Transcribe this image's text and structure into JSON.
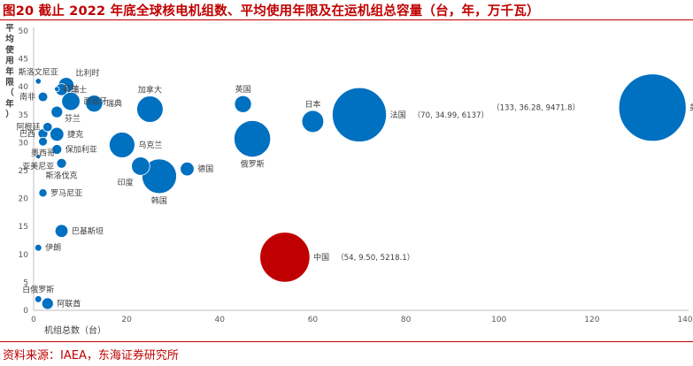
{
  "header": {
    "title": "图20  截止 2022 年底全球核电机组数、平均使用年限及在运机组总容量（台，年，万千瓦）"
  },
  "footer": {
    "source": "资料来源：IAEA，东海证券研究所"
  },
  "colors": {
    "bubble": "#0070c0",
    "highlight": "#c00000",
    "axis": "#bfbfbf",
    "text": "#404040",
    "title": "#c00000"
  },
  "chart_data": {
    "type": "bubble",
    "title": "",
    "xlabel": "机组总数（台）",
    "ylabel": "平均使用年限（年）",
    "xlim": [
      0,
      140
    ],
    "ylim": [
      0,
      50
    ],
    "x_ticks": [
      0,
      20,
      40,
      60,
      80,
      100,
      120,
      140
    ],
    "y_ticks": [
      0,
      5,
      10,
      15,
      20,
      25,
      30,
      35,
      40,
      45,
      50
    ],
    "grid": false,
    "points": [
      {
        "name": "美国",
        "x": 133,
        "y": 36.28,
        "size": 9471.8,
        "annotation": "（133, 36.28, 9471.8）"
      },
      {
        "name": "法国",
        "x": 70,
        "y": 34.99,
        "size": 6137,
        "annotation": "（70, 34.99, 6137）"
      },
      {
        "name": "中国",
        "x": 54,
        "y": 9.5,
        "size": 5218.1,
        "annotation": "（54, 9.50, 5218.1）",
        "highlight": true
      },
      {
        "name": "俄罗斯",
        "x": 47,
        "y": 30.7,
        "size": 2800
      },
      {
        "name": "日本",
        "x": 60,
        "y": 33.8,
        "size": 1000
      },
      {
        "name": "英国",
        "x": 45,
        "y": 36.9,
        "size": 600
      },
      {
        "name": "韩国",
        "x": 27,
        "y": 24,
        "size": 2500
      },
      {
        "name": "印度",
        "x": 23,
        "y": 25.8,
        "size": 700
      },
      {
        "name": "加拿大",
        "x": 25,
        "y": 36,
        "size": 1450
      },
      {
        "name": "乌克兰",
        "x": 19,
        "y": 29.6,
        "size": 1380
      },
      {
        "name": "德国",
        "x": 33,
        "y": 25.3,
        "size": 400
      },
      {
        "name": "瑞典",
        "x": 13,
        "y": 37,
        "size": 600
      },
      {
        "name": "西班牙",
        "x": 8,
        "y": 37.4,
        "size": 700
      },
      {
        "name": "比利时",
        "x": 7,
        "y": 40.3,
        "size": 500
      },
      {
        "name": "瑞士",
        "x": 6,
        "y": 39.5,
        "size": 300
      },
      {
        "name": "芬兰",
        "x": 5,
        "y": 35.5,
        "size": 280
      },
      {
        "name": "荷兰",
        "x": 5,
        "y": 39.6,
        "size": 50
      },
      {
        "name": "斯洛文尼亚",
        "x": 1,
        "y": 41,
        "size": 70
      },
      {
        "name": "南非",
        "x": 2,
        "y": 38.2,
        "size": 190
      },
      {
        "name": "阿根廷",
        "x": 3,
        "y": 32.8,
        "size": 180
      },
      {
        "name": "巴西",
        "x": 2,
        "y": 31.6,
        "size": 200
      },
      {
        "name": "捷克",
        "x": 5,
        "y": 31.5,
        "size": 400
      },
      {
        "name": "墨西哥",
        "x": 2,
        "y": 30.2,
        "size": 160
      },
      {
        "name": "保加利亚",
        "x": 5,
        "y": 28.8,
        "size": 200
      },
      {
        "name": "亚美尼亚",
        "x": 1,
        "y": 27.5,
        "size": 40
      },
      {
        "name": "斯洛伐克",
        "x": 6,
        "y": 26.3,
        "size": 200
      },
      {
        "name": "罗马尼亚",
        "x": 2,
        "y": 21,
        "size": 140
      },
      {
        "name": "巴基斯坦",
        "x": 6,
        "y": 14.2,
        "size": 350
      },
      {
        "name": "伊朗",
        "x": 1,
        "y": 11.2,
        "size": 100
      },
      {
        "name": "白俄罗斯",
        "x": 1,
        "y": 2,
        "size": 100
      },
      {
        "name": "阿联酋",
        "x": 3,
        "y": 1.2,
        "size": 280
      }
    ],
    "labels": [
      {
        "text": "美国",
        "pos": "right"
      },
      {
        "text": "法国",
        "pos": "right"
      },
      {
        "text": "中国",
        "pos": "right"
      },
      {
        "text": "俄罗斯",
        "pos": "below"
      },
      {
        "text": "日本",
        "pos": "above"
      },
      {
        "text": "英国",
        "pos": "above"
      },
      {
        "text": "韩国",
        "pos": "below"
      },
      {
        "text": "印度",
        "pos": "below-left"
      },
      {
        "text": "加拿大",
        "pos": "above"
      },
      {
        "text": "乌克兰",
        "pos": "right"
      },
      {
        "text": "德国",
        "pos": "right"
      },
      {
        "text": "瑞典",
        "pos": "right"
      },
      {
        "text": "西班牙",
        "pos": "right"
      },
      {
        "text": "比利时",
        "pos": "above-right"
      },
      {
        "text": "瑞士",
        "pos": "right"
      },
      {
        "text": "芬兰",
        "pos": "below-right"
      },
      {
        "text": "荷兰",
        "pos": "right"
      },
      {
        "text": "斯洛文尼亚",
        "pos": "above"
      },
      {
        "text": "南非",
        "pos": "left"
      },
      {
        "text": "阿根廷",
        "pos": "left"
      },
      {
        "text": "巴西",
        "pos": "left"
      },
      {
        "text": "捷克",
        "pos": "right"
      },
      {
        "text": "墨西哥",
        "pos": "below"
      },
      {
        "text": "保加利亚",
        "pos": "right"
      },
      {
        "text": "亚美尼亚",
        "pos": "below"
      },
      {
        "text": "斯洛伐克",
        "pos": "below"
      },
      {
        "text": "罗马尼亚",
        "pos": "right"
      },
      {
        "text": "巴基斯坦",
        "pos": "right"
      },
      {
        "text": "伊朗",
        "pos": "right"
      },
      {
        "text": "白俄罗斯",
        "pos": "above"
      },
      {
        "text": "阿联酋",
        "pos": "right"
      }
    ]
  }
}
